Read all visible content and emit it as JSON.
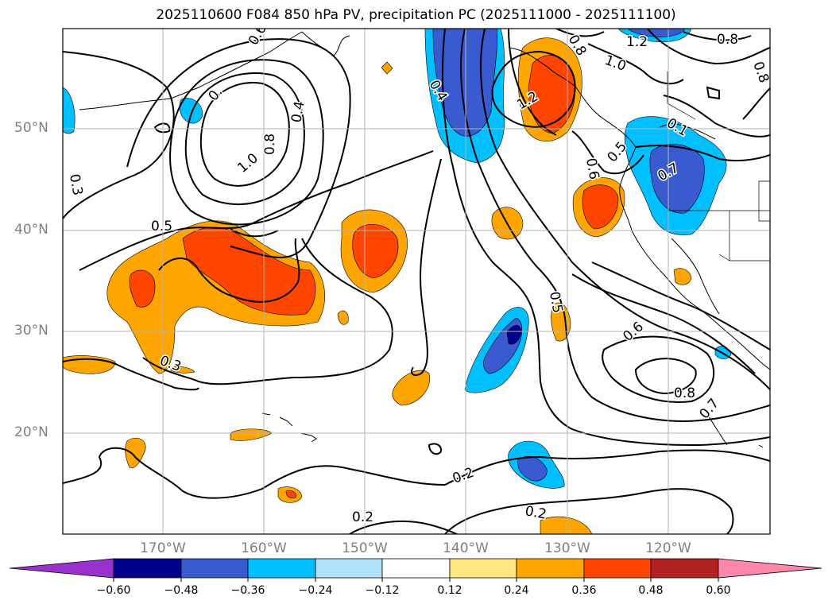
{
  "title": "2025110600 F084 850 hPa PV, precipitation PC (2025111000 - 2025111100)",
  "map": {
    "lat_labels": [
      "50°N",
      "40°N",
      "30°N",
      "20°N"
    ],
    "lon_labels": [
      "170°W",
      "160°W",
      "150°W",
      "140°W",
      "130°W",
      "120°W"
    ],
    "contour_labels": [
      "0.6",
      "0.",
      "1.0",
      "0.8",
      "0.4",
      "0.3",
      "0.5",
      "0.3",
      "0.4",
      "1.2",
      "0.8",
      "1.0",
      "0.8",
      "1.2",
      "0.8",
      "0.1",
      "0.7",
      "0.6",
      "0.5",
      "0.5",
      "0.6",
      "0.8",
      "0.7",
      "0.2",
      "0.2",
      "0.2"
    ]
  },
  "colorbar": {
    "ticks": [
      "−0.60",
      "−0.48",
      "−0.36",
      "−0.24",
      "−0.12",
      "0.12",
      "0.24",
      "0.36",
      "0.48",
      "0.60"
    ],
    "colors": [
      "#9932cc",
      "#00008b",
      "#3a5bd0",
      "#00bfff",
      "#b0e0fa",
      "#ffffff",
      "#ffe680",
      "#ffa500",
      "#ff4500",
      "#b22222",
      "#ff88aa"
    ]
  }
}
